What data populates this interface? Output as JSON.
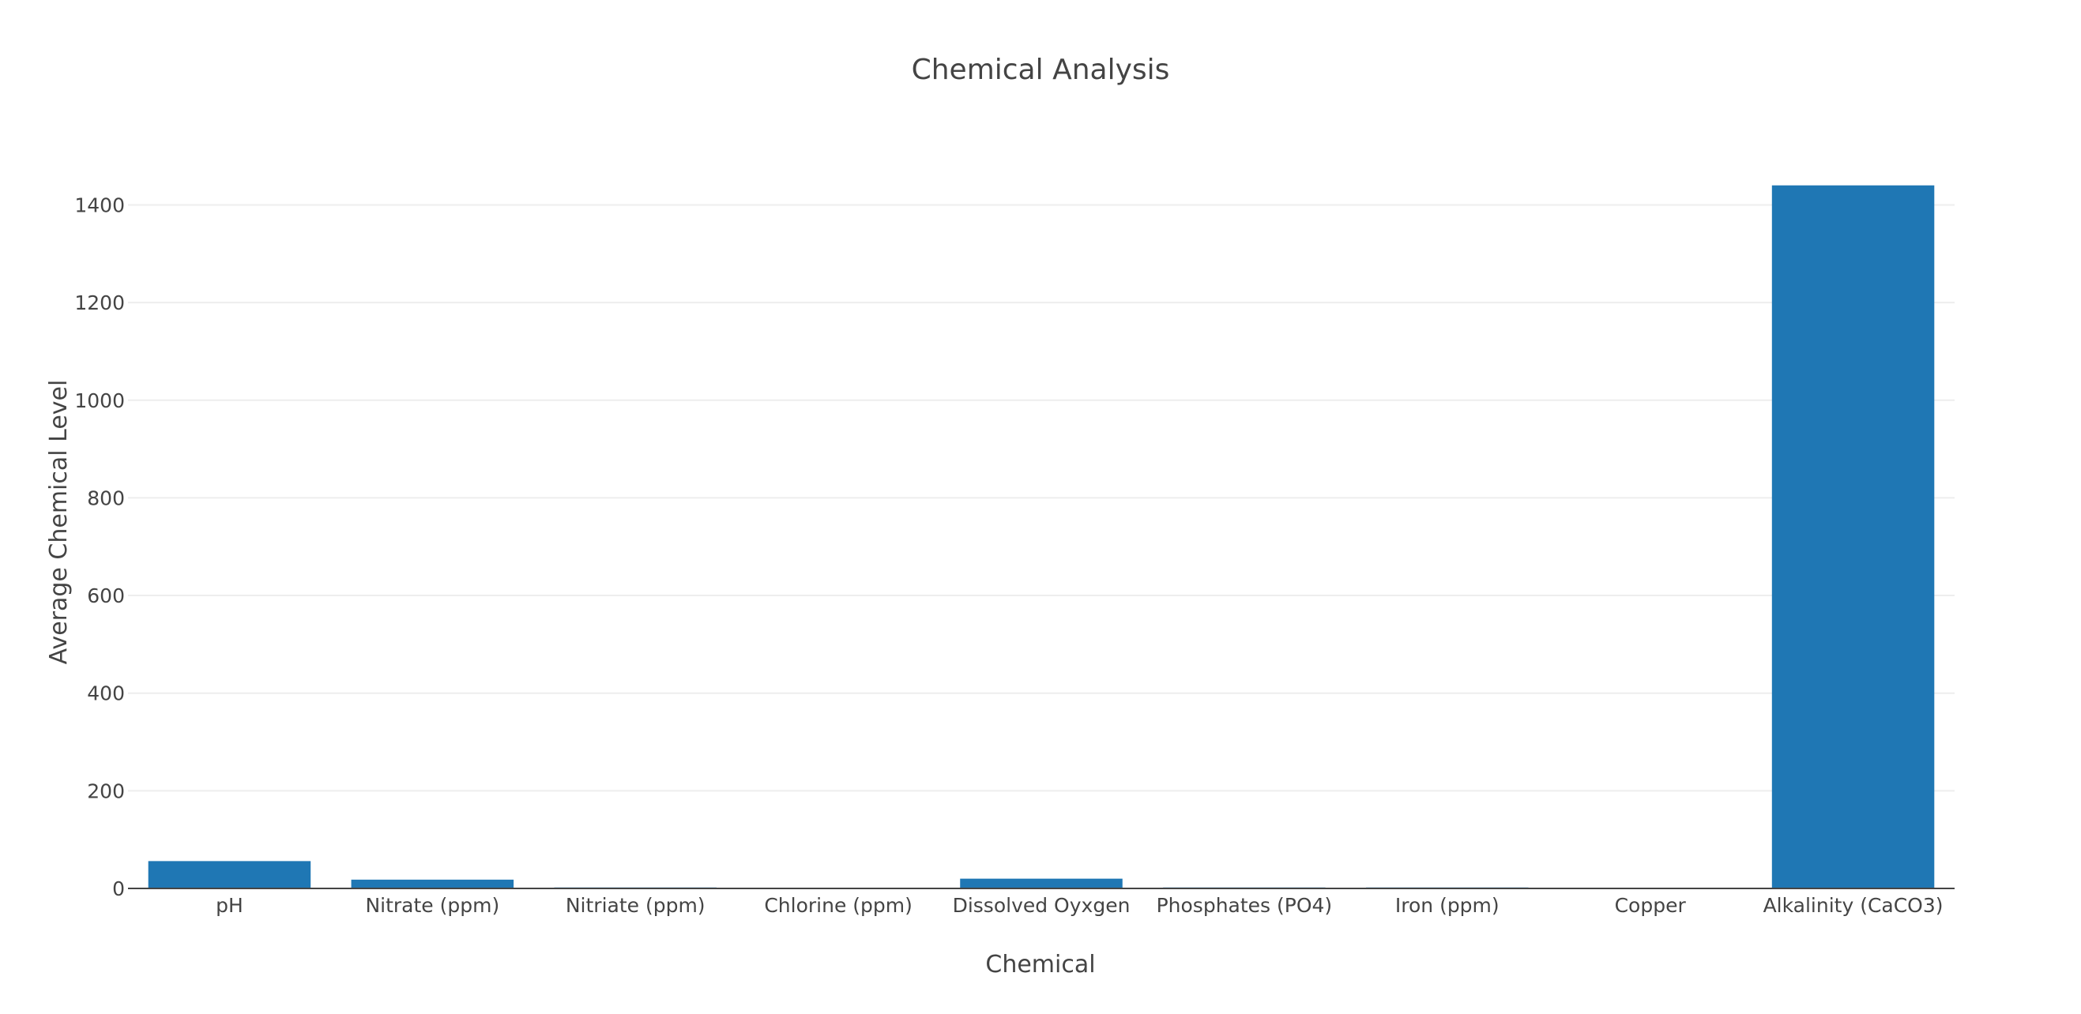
{
  "chart_data": {
    "type": "bar",
    "title": "Chemical Analysis",
    "xlabel": "Chemical",
    "ylabel": "Average Chemical Level",
    "categories": [
      "pH",
      "Nitrate (ppm)",
      "Nitriate (ppm)",
      "Chlorine (ppm)",
      "Dissolved Oyxgen",
      "Phosphates (PO4)",
      "Iron (ppm)",
      "Copper",
      "Alkalinity (CaCO3)"
    ],
    "values": [
      56,
      18,
      2,
      0,
      20,
      2,
      2,
      0,
      1440
    ],
    "ylim": [
      0,
      1480
    ],
    "yticks": [
      0,
      200,
      400,
      600,
      800,
      1000,
      1200,
      1400
    ],
    "grid": true,
    "legend": "none",
    "bar_color": "#1f77b4"
  }
}
